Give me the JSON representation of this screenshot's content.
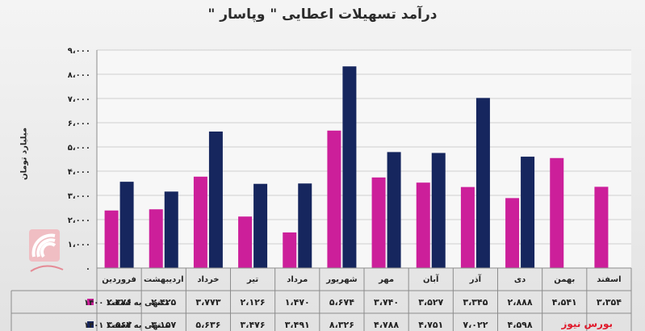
{
  "title": "درآمد تسهیلات اعطایی \" وپاسار \"",
  "source": "بورس نیوز",
  "colors": {
    "series1": "#cc1f9a",
    "series2": "#16265e",
    "grid": "#cfcfcf",
    "table": "#8c8c8c"
  },
  "chart_data": {
    "type": "bar",
    "ylabel": "میلیارد تومان",
    "ylim": [
      0,
      9000
    ],
    "ytick_labels": [
      "۰",
      "۱،۰۰۰",
      "۲،۰۰۰",
      "۳،۰۰۰",
      "۴،۰۰۰",
      "۵،۰۰۰",
      "۶،۰۰۰",
      "۷،۰۰۰",
      "۸،۰۰۰",
      "۹،۰۰۰"
    ],
    "categories": [
      "فروردین",
      "اردیبهشت",
      "خرداد",
      "تیر",
      "مرداد",
      "شهریور",
      "مهر",
      "آبان",
      "آذر",
      "دی",
      "بهمن",
      "اسفند"
    ],
    "series": [
      {
        "name": "منتهی به اسفند ۱۴۰۰",
        "values": [
          2376,
          2425,
          3773,
          2126,
          1470,
          5674,
          3740,
          3527,
          3345,
          2888,
          4541,
          3354
        ],
        "labels": [
          "۲،۳۷۶",
          "۲،۴۲۵",
          "۳،۷۷۳",
          "۲،۱۲۶",
          "۱،۴۷۰",
          "۵،۶۷۴",
          "۳،۷۴۰",
          "۳،۵۲۷",
          "۳،۳۴۵",
          "۲،۸۸۸",
          "۴،۵۴۱",
          "۳،۳۵۴"
        ]
      },
      {
        "name": "منتهی به اسفند ۱۴۰۱",
        "values": [
          3562,
          3157,
          5636,
          3476,
          3491,
          8326,
          4788,
          4751,
          7022,
          4598,
          null,
          null
        ],
        "labels": [
          "۳،۵۶۲",
          "۳،۱۵۷",
          "۵،۶۳۶",
          "۳،۴۷۶",
          "۳،۴۹۱",
          "۸،۳۲۶",
          "۴،۷۸۸",
          "۴،۷۵۱",
          "۷،۰۲۲",
          "۴،۵۹۸",
          "",
          ""
        ]
      }
    ]
  }
}
